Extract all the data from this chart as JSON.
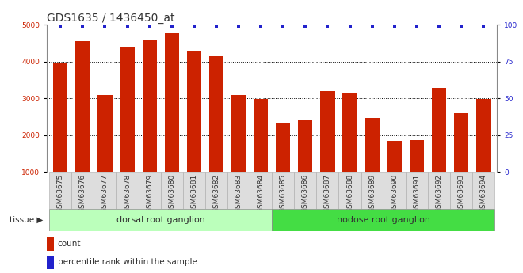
{
  "title": "GDS1635 / 1436450_at",
  "categories": [
    "GSM63675",
    "GSM63676",
    "GSM63677",
    "GSM63678",
    "GSM63679",
    "GSM63680",
    "GSM63681",
    "GSM63682",
    "GSM63683",
    "GSM63684",
    "GSM63685",
    "GSM63686",
    "GSM63687",
    "GSM63688",
    "GSM63689",
    "GSM63690",
    "GSM63691",
    "GSM63692",
    "GSM63693",
    "GSM63694"
  ],
  "counts": [
    3950,
    4550,
    3080,
    4380,
    4600,
    4760,
    4270,
    4150,
    3080,
    2980,
    2310,
    2410,
    3200,
    3150,
    2460,
    1840,
    1860,
    3290,
    2590,
    2980
  ],
  "percentiles": [
    99,
    99,
    99,
    99,
    99,
    99,
    99,
    99,
    99,
    99,
    99,
    99,
    99,
    99,
    99,
    99,
    99,
    99,
    99,
    99
  ],
  "bar_color": "#cc2200",
  "dot_color": "#2222cc",
  "ylim_left": [
    1000,
    5000
  ],
  "ylim_right": [
    0,
    100
  ],
  "yticks_left": [
    1000,
    2000,
    3000,
    4000,
    5000
  ],
  "yticks_right": [
    0,
    25,
    50,
    75,
    100
  ],
  "group1_label": "dorsal root ganglion",
  "group2_label": "nodose root ganglion",
  "group1_count": 10,
  "tissue_label": "tissue",
  "legend_count": "count",
  "legend_pct": "percentile rank within the sample",
  "bg_plot": "#ffffff",
  "bg_xtick": "#dddddd",
  "bg_group1": "#bbffbb",
  "bg_group2": "#44dd44",
  "grid_color": "#000000",
  "title_fontsize": 10,
  "tick_fontsize": 6.5,
  "bar_width": 0.65
}
